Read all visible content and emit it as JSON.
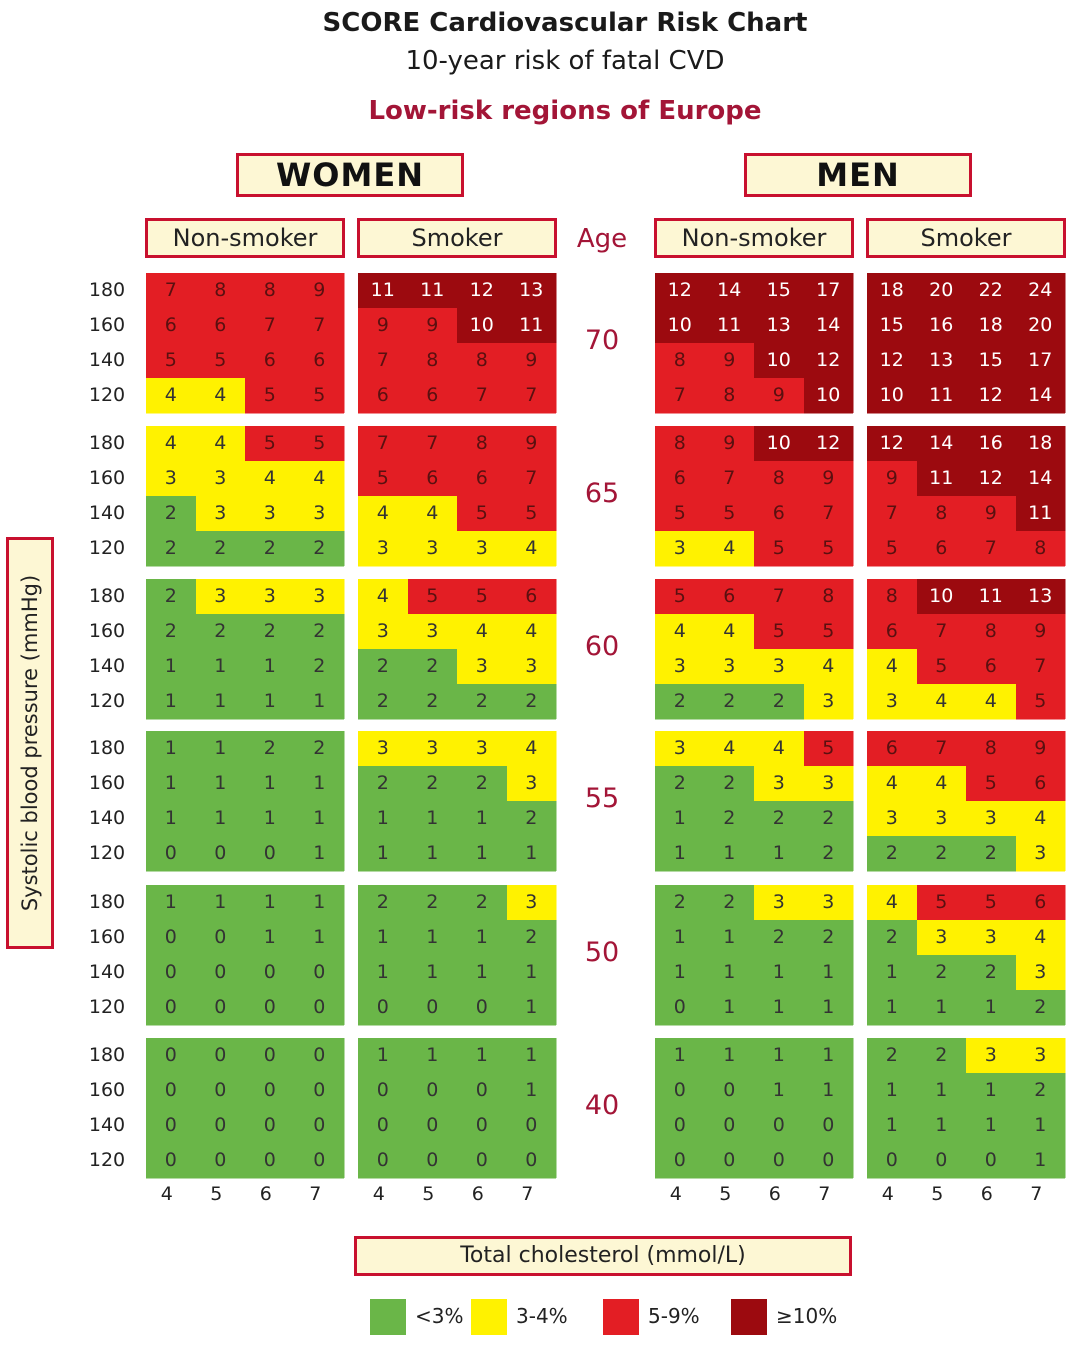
{
  "chart_data": {
    "type": "heatmap",
    "title": "SCORE Cardiovascular Risk Chart",
    "subtitle": "10-year risk of fatal CVD",
    "region": "Low-risk regions of Europe",
    "sex_labels": [
      "WOMEN",
      "MEN"
    ],
    "smoking_labels": [
      "Non-smoker",
      "Smoker"
    ],
    "age_label": "Age",
    "ages": [
      "70",
      "65",
      "60",
      "55",
      "50",
      "40"
    ],
    "ylabel": "Systolic blood pressure (mmHg)",
    "sbp_levels": [
      "180",
      "160",
      "140",
      "120"
    ],
    "xlabel": "Total cholesterol (mmol/L)",
    "cholesterol_levels": [
      "4",
      "5",
      "6",
      "7"
    ],
    "legend": [
      {
        "label": "<3%",
        "color": "#6ab648"
      },
      {
        "label": "3-4%",
        "color": "#fff200"
      },
      {
        "label": "5-9%",
        "color": "#e31e24"
      },
      {
        "label": "≥10%",
        "color": "#9c0a0f"
      }
    ],
    "grids": {
      "women_nonsmoker": [
        [
          [
            7,
            8,
            8,
            9
          ],
          [
            6,
            6,
            7,
            7
          ],
          [
            5,
            5,
            6,
            6
          ],
          [
            4,
            4,
            5,
            5
          ]
        ],
        [
          [
            4,
            4,
            5,
            5
          ],
          [
            3,
            3,
            4,
            4
          ],
          [
            2,
            3,
            3,
            3
          ],
          [
            2,
            2,
            2,
            2
          ]
        ],
        [
          [
            2,
            3,
            3,
            3
          ],
          [
            2,
            2,
            2,
            2
          ],
          [
            1,
            1,
            1,
            2
          ],
          [
            1,
            1,
            1,
            1
          ]
        ],
        [
          [
            1,
            1,
            2,
            2
          ],
          [
            1,
            1,
            1,
            1
          ],
          [
            1,
            1,
            1,
            1
          ],
          [
            0,
            0,
            0,
            1
          ]
        ],
        [
          [
            1,
            1,
            1,
            1
          ],
          [
            0,
            0,
            1,
            1
          ],
          [
            0,
            0,
            0,
            0
          ],
          [
            0,
            0,
            0,
            0
          ]
        ],
        [
          [
            0,
            0,
            0,
            0
          ],
          [
            0,
            0,
            0,
            0
          ],
          [
            0,
            0,
            0,
            0
          ],
          [
            0,
            0,
            0,
            0
          ]
        ]
      ],
      "women_smoker": [
        [
          [
            11,
            11,
            12,
            13
          ],
          [
            9,
            9,
            10,
            11
          ],
          [
            7,
            8,
            8,
            9
          ],
          [
            6,
            6,
            7,
            7
          ]
        ],
        [
          [
            7,
            7,
            8,
            9
          ],
          [
            5,
            6,
            6,
            7
          ],
          [
            4,
            4,
            5,
            5
          ],
          [
            3,
            3,
            3,
            4
          ]
        ],
        [
          [
            4,
            5,
            5,
            6
          ],
          [
            3,
            3,
            4,
            4
          ],
          [
            2,
            2,
            3,
            3
          ],
          [
            2,
            2,
            2,
            2
          ]
        ],
        [
          [
            3,
            3,
            3,
            4
          ],
          [
            2,
            2,
            2,
            3
          ],
          [
            1,
            1,
            1,
            2
          ],
          [
            1,
            1,
            1,
            1
          ]
        ],
        [
          [
            2,
            2,
            2,
            3
          ],
          [
            1,
            1,
            1,
            2
          ],
          [
            1,
            1,
            1,
            1
          ],
          [
            0,
            0,
            0,
            1
          ]
        ],
        [
          [
            1,
            1,
            1,
            1
          ],
          [
            0,
            0,
            0,
            1
          ],
          [
            0,
            0,
            0,
            0
          ],
          [
            0,
            0,
            0,
            0
          ]
        ]
      ],
      "men_nonsmoker": [
        [
          [
            12,
            14,
            15,
            17
          ],
          [
            10,
            11,
            13,
            14
          ],
          [
            8,
            9,
            10,
            12
          ],
          [
            7,
            8,
            9,
            10
          ]
        ],
        [
          [
            8,
            9,
            10,
            12
          ],
          [
            6,
            7,
            8,
            9
          ],
          [
            5,
            5,
            6,
            7
          ],
          [
            3,
            4,
            5,
            5
          ]
        ],
        [
          [
            5,
            6,
            7,
            8
          ],
          [
            4,
            4,
            5,
            5
          ],
          [
            3,
            3,
            3,
            4
          ],
          [
            2,
            2,
            2,
            3
          ]
        ],
        [
          [
            3,
            4,
            4,
            5
          ],
          [
            2,
            2,
            3,
            3
          ],
          [
            1,
            2,
            2,
            2
          ],
          [
            1,
            1,
            1,
            2
          ]
        ],
        [
          [
            2,
            2,
            3,
            3
          ],
          [
            1,
            1,
            2,
            2
          ],
          [
            1,
            1,
            1,
            1
          ],
          [
            0,
            1,
            1,
            1
          ]
        ],
        [
          [
            1,
            1,
            1,
            1
          ],
          [
            0,
            0,
            1,
            1
          ],
          [
            0,
            0,
            0,
            0
          ],
          [
            0,
            0,
            0,
            0
          ]
        ]
      ],
      "men_smoker": [
        [
          [
            18,
            20,
            22,
            24
          ],
          [
            15,
            16,
            18,
            20
          ],
          [
            12,
            13,
            15,
            17
          ],
          [
            10,
            11,
            12,
            14
          ]
        ],
        [
          [
            12,
            14,
            16,
            18
          ],
          [
            9,
            11,
            12,
            14
          ],
          [
            7,
            8,
            9,
            11
          ],
          [
            5,
            6,
            7,
            8
          ]
        ],
        [
          [
            8,
            10,
            11,
            13
          ],
          [
            6,
            7,
            8,
            9
          ],
          [
            4,
            5,
            6,
            7
          ],
          [
            3,
            4,
            4,
            5
          ]
        ],
        [
          [
            6,
            7,
            8,
            9
          ],
          [
            4,
            4,
            5,
            6
          ],
          [
            3,
            3,
            3,
            4
          ],
          [
            2,
            2,
            2,
            3
          ]
        ],
        [
          [
            4,
            5,
            5,
            6
          ],
          [
            2,
            3,
            3,
            4
          ],
          [
            1,
            2,
            2,
            3
          ],
          [
            1,
            1,
            1,
            2
          ]
        ],
        [
          [
            2,
            2,
            3,
            3
          ],
          [
            1,
            1,
            1,
            2
          ],
          [
            1,
            1,
            1,
            1
          ],
          [
            0,
            0,
            0,
            1
          ]
        ]
      ]
    }
  }
}
